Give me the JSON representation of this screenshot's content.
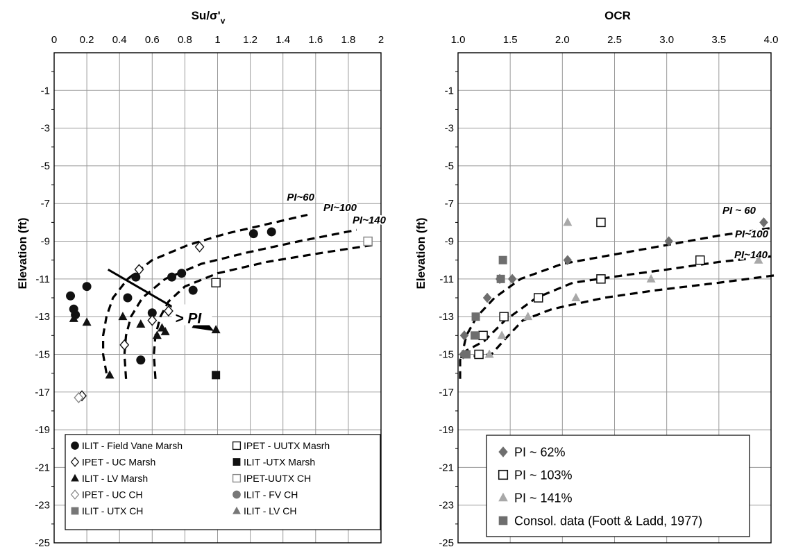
{
  "chart_data": [
    {
      "type": "scatter",
      "title": "Su/σ'",
      "title_sub": "v",
      "ylabel": "Elevation (ft)",
      "xlim": [
        0,
        2
      ],
      "ylim": [
        -25,
        1
      ],
      "x_ticks": [
        "0",
        "0.2",
        "0.4",
        "0.6",
        "0.8",
        "1",
        "1.2",
        "1.4",
        "1.6",
        "1.8",
        "2"
      ],
      "y_ticks": [
        "-1",
        "-3",
        "-5",
        "-7",
        "-9",
        "-11",
        "-13",
        "-15",
        "-17",
        "-19",
        "-21",
        "-23",
        "-25"
      ],
      "grid": true,
      "x_axis_position": "top",
      "legend_position": "bottom",
      "series": [
        {
          "name": "ILIT - Field Vane Marsh",
          "marker": "circle",
          "color": "#111111",
          "points": [
            [
              0.1,
              -11.9
            ],
            [
              0.12,
              -12.6
            ],
            [
              0.13,
              -12.9
            ],
            [
              0.2,
              -11.4
            ],
            [
              0.45,
              -12.0
            ],
            [
              0.5,
              -10.9
            ],
            [
              0.6,
              -12.8
            ],
            [
              0.53,
              -15.3
            ],
            [
              0.72,
              -10.9
            ],
            [
              0.78,
              -10.7
            ],
            [
              0.85,
              -11.6
            ],
            [
              1.22,
              -8.6
            ],
            [
              1.33,
              -8.5
            ]
          ]
        },
        {
          "name": "IPET - UC Marsh",
          "marker": "diamond-open",
          "color": "#111111",
          "points": [
            [
              0.52,
              -10.5
            ],
            [
              0.6,
              -13.2
            ],
            [
              0.43,
              -14.5
            ],
            [
              0.7,
              -12.7
            ],
            [
              0.89,
              -9.3
            ],
            [
              0.17,
              -17.2
            ]
          ]
        },
        {
          "name": "ILIT - LV Marsh",
          "marker": "triangle",
          "color": "#111111",
          "points": [
            [
              0.12,
              -13.1
            ],
            [
              0.2,
              -13.3
            ],
            [
              0.34,
              -16.1
            ],
            [
              0.42,
              -13.0
            ],
            [
              0.53,
              -13.4
            ],
            [
              0.63,
              -14.0
            ],
            [
              0.66,
              -13.6
            ],
            [
              0.68,
              -13.8
            ],
            [
              0.99,
              -13.7
            ]
          ]
        },
        {
          "name": "IPET - UC CH",
          "marker": "diamond-open",
          "color": "#888888",
          "points": [
            [
              0.15,
              -17.3
            ]
          ]
        },
        {
          "name": "ILIT - UTX CH",
          "marker": "square",
          "color": "#777777",
          "points": []
        },
        {
          "name": "IPET - UUTX  Masrh",
          "marker": "square-open",
          "color": "#111111",
          "points": [
            [
              0.99,
              -11.2
            ]
          ]
        },
        {
          "name": "ILIT -UTX Marsh",
          "marker": "square",
          "color": "#111111",
          "points": [
            [
              0.99,
              -16.1
            ]
          ]
        },
        {
          "name": "IPET-UUTX  CH",
          "marker": "square-open",
          "color": "#888888",
          "points": [
            [
              1.92,
              -9.0
            ]
          ]
        },
        {
          "name": "ILIT - FV CH",
          "marker": "circle",
          "color": "#777777",
          "points": []
        },
        {
          "name": "ILIT - LV CH",
          "marker": "triangle",
          "color": "#777777",
          "points": []
        }
      ],
      "curves": [
        {
          "label": "PI~60",
          "points": [
            [
              0.32,
              -16
            ],
            [
              0.3,
              -15
            ],
            [
              0.3,
              -14
            ],
            [
              0.32,
              -13
            ],
            [
              0.36,
              -12
            ],
            [
              0.45,
              -11
            ],
            [
              0.6,
              -10
            ],
            [
              0.82,
              -9.2
            ],
            [
              1.05,
              -8.6
            ],
            [
              1.3,
              -8.1
            ],
            [
              1.55,
              -7.6
            ]
          ]
        },
        {
          "label": "PI~100",
          "points": [
            [
              0.44,
              -16.3
            ],
            [
              0.43,
              -15
            ],
            [
              0.44,
              -14
            ],
            [
              0.47,
              -13
            ],
            [
              0.54,
              -12
            ],
            [
              0.68,
              -11
            ],
            [
              0.9,
              -10.2
            ],
            [
              1.18,
              -9.6
            ],
            [
              1.5,
              -9.0
            ],
            [
              1.85,
              -8.4
            ]
          ]
        },
        {
          "label": "PI~140",
          "points": [
            [
              0.62,
              -16.3
            ],
            [
              0.61,
              -15
            ],
            [
              0.62,
              -14
            ],
            [
              0.65,
              -13
            ],
            [
              0.7,
              -12.2
            ],
            [
              0.8,
              -11.4
            ],
            [
              1.0,
              -10.7
            ],
            [
              1.3,
              -10.1
            ],
            [
              1.65,
              -9.6
            ],
            [
              1.95,
              -9.2
            ]
          ]
        }
      ],
      "arrow": {
        "label": "> PI",
        "from": [
          0.33,
          -10.5
        ],
        "to": [
          0.99,
          -13.8
        ]
      }
    },
    {
      "type": "scatter",
      "title": "OCR",
      "ylabel": "Elevation (ft)",
      "xlim": [
        1.0,
        4.0
      ],
      "ylim": [
        -25,
        1
      ],
      "x_ticks": [
        "1.0",
        "1.5",
        "2.0",
        "2.5",
        "3.0",
        "3.5",
        "4.0"
      ],
      "y_ticks": [
        "-1",
        "-3",
        "-5",
        "-7",
        "-9",
        "-11",
        "-13",
        "-15",
        "-17",
        "-19",
        "-21",
        "-23",
        "-25"
      ],
      "grid": true,
      "x_axis_position": "top",
      "legend_position": "bottom-left",
      "series": [
        {
          "name": "PI ~ 62%",
          "marker": "diamond",
          "color": "#6e6e6e",
          "points": [
            [
              1.06,
              -14.0
            ],
            [
              1.05,
              -15.0
            ],
            [
              1.28,
              -12.0
            ],
            [
              1.4,
              -11.0
            ],
            [
              1.52,
              -11.0
            ],
            [
              2.05,
              -10.0
            ],
            [
              3.02,
              -9.0
            ],
            [
              3.93,
              -8.0
            ]
          ]
        },
        {
          "name": "PI ~ 103%",
          "marker": "square-open",
          "color": "#111111",
          "points": [
            [
              1.2,
              -15.0
            ],
            [
              1.24,
              -14.0
            ],
            [
              1.44,
              -13.0
            ],
            [
              1.77,
              -12.0
            ],
            [
              2.37,
              -11.0
            ],
            [
              2.37,
              -8.0
            ],
            [
              3.32,
              -10.0
            ]
          ]
        },
        {
          "name": "PI ~ 141%",
          "marker": "triangle",
          "color": "#a8a8a8",
          "points": [
            [
              1.3,
              -15.0
            ],
            [
              1.42,
              -14.0
            ],
            [
              1.67,
              -13.0
            ],
            [
              2.13,
              -12.0
            ],
            [
              2.05,
              -8.0
            ],
            [
              2.85,
              -11.0
            ],
            [
              3.88,
              -10.0
            ]
          ]
        },
        {
          "name": "Consol. data (Foott & Ladd, 1977)",
          "marker": "square",
          "color": "#6e6e6e",
          "points": [
            [
              1.08,
              -15.0
            ],
            [
              1.16,
              -14.0
            ],
            [
              1.17,
              -13.0
            ],
            [
              1.41,
              -11.0
            ],
            [
              1.43,
              -10.0
            ]
          ]
        }
      ],
      "curves": [
        {
          "label": "PI ~ 60",
          "points": [
            [
              1.03,
              -15.2
            ],
            [
              1.08,
              -14.0
            ],
            [
              1.18,
              -13.0
            ],
            [
              1.35,
              -12.0
            ],
            [
              1.6,
              -11.0
            ],
            [
              2.0,
              -10.2
            ],
            [
              2.5,
              -9.7
            ],
            [
              3.0,
              -9.2
            ],
            [
              3.5,
              -8.7
            ],
            [
              4.0,
              -8.3
            ]
          ]
        },
        {
          "label": "PI~100",
          "points": [
            [
              1.02,
              -16.3
            ],
            [
              1.02,
              -15.3
            ],
            [
              1.08,
              -14.8
            ],
            [
              1.25,
              -14.3
            ],
            [
              1.45,
              -13.2
            ],
            [
              1.75,
              -12.0
            ],
            [
              2.1,
              -11.2
            ],
            [
              2.6,
              -10.8
            ],
            [
              3.0,
              -10.5
            ],
            [
              3.5,
              -10.1
            ],
            [
              4.0,
              -9.8
            ]
          ]
        },
        {
          "label": "PI~140",
          "points": [
            [
              1.15,
              -15.1
            ],
            [
              1.32,
              -15.0
            ],
            [
              1.45,
              -14.2
            ],
            [
              1.62,
              -13.2
            ],
            [
              1.9,
              -12.6
            ],
            [
              2.4,
              -12.0
            ],
            [
              2.9,
              -11.6
            ],
            [
              3.5,
              -11.2
            ],
            [
              4.05,
              -10.8
            ]
          ]
        }
      ]
    }
  ]
}
